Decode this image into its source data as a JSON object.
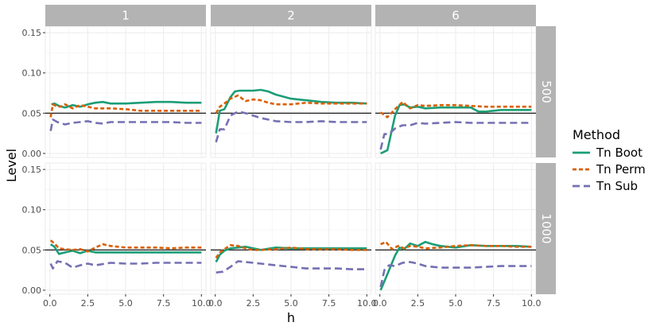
{
  "chart_data": {
    "type": "line",
    "xlabel": "h",
    "ylabel": "Level",
    "xlim": [
      -0.3,
      10.3
    ],
    "ylim": [
      -0.005,
      0.158
    ],
    "x_ticks": [
      0.0,
      2.5,
      5.0,
      7.5,
      10.0
    ],
    "x_tick_labels": [
      "0.0",
      "2.5",
      "5.0",
      "7.5",
      "10.0"
    ],
    "y_ticks": [
      0.0,
      0.05,
      0.1,
      0.15
    ],
    "y_tick_labels": [
      "0.00",
      "0.05",
      "0.10",
      "0.15"
    ],
    "reference_line": 0.05,
    "grid": true,
    "legend": {
      "title": "Method",
      "placement": "right",
      "entries": [
        {
          "name": "Tn Boot",
          "color": "#1b9e77",
          "dash": "solid"
        },
        {
          "name": "Tn Perm",
          "color": "#d95f02",
          "dash": "dotted"
        },
        {
          "name": "Tn Sub",
          "color": "#7570b3",
          "dash": "dashed"
        }
      ]
    },
    "col_facets": [
      "1",
      "2",
      "6"
    ],
    "row_facets": [
      "500",
      "1000"
    ],
    "panels": [
      {
        "col": "1",
        "row": "500",
        "series": [
          {
            "name": "Tn Boot",
            "x": [
              0.1,
              0.3,
              0.6,
              1,
              1.5,
              2,
              2.5,
              3,
              3.5,
              4,
              5,
              6,
              7,
              8,
              9,
              10
            ],
            "y": [
              0.061,
              0.062,
              0.059,
              0.057,
              0.06,
              0.058,
              0.061,
              0.063,
              0.064,
              0.062,
              0.062,
              0.063,
              0.064,
              0.064,
              0.063,
              0.063
            ]
          },
          {
            "name": "Tn Perm",
            "x": [
              0.05,
              0.2,
              0.4,
              0.7,
              1,
              1.5,
              2,
              2.5,
              3,
              4,
              5,
              6,
              7,
              8,
              9,
              10
            ],
            "y": [
              0.045,
              0.061,
              0.059,
              0.058,
              0.061,
              0.056,
              0.06,
              0.058,
              0.056,
              0.056,
              0.055,
              0.053,
              0.053,
              0.053,
              0.053,
              0.053
            ]
          },
          {
            "name": "Tn Sub",
            "x": [
              0.05,
              0.2,
              0.5,
              1,
              1.5,
              2,
              2.5,
              3,
              3.5,
              4,
              5,
              6,
              7,
              8,
              9,
              10
            ],
            "y": [
              0.028,
              0.042,
              0.039,
              0.036,
              0.038,
              0.039,
              0.04,
              0.038,
              0.037,
              0.039,
              0.039,
              0.039,
              0.039,
              0.039,
              0.038,
              0.038
            ]
          }
        ]
      },
      {
        "col": "2",
        "row": "500",
        "series": [
          {
            "name": "Tn Boot",
            "x": [
              0.05,
              0.3,
              0.6,
              1,
              1.3,
              1.6,
              2,
              2.5,
              3,
              3.5,
              4,
              5,
              6,
              7,
              8,
              9,
              10
            ],
            "y": [
              0.025,
              0.053,
              0.055,
              0.07,
              0.077,
              0.078,
              0.078,
              0.078,
              0.079,
              0.077,
              0.073,
              0.068,
              0.066,
              0.064,
              0.063,
              0.063,
              0.062
            ]
          },
          {
            "name": "Tn Perm",
            "x": [
              0.05,
              0.3,
              0.6,
              1,
              1.5,
              2,
              2.5,
              3,
              3.5,
              4,
              5,
              6,
              7,
              8,
              9,
              10
            ],
            "y": [
              0.05,
              0.058,
              0.062,
              0.068,
              0.072,
              0.065,
              0.067,
              0.066,
              0.063,
              0.061,
              0.061,
              0.063,
              0.062,
              0.062,
              0.062,
              0.062
            ]
          },
          {
            "name": "Tn Sub",
            "x": [
              0.05,
              0.3,
              0.6,
              1,
              1.5,
              2,
              2.5,
              3,
              4,
              5,
              6,
              7,
              8,
              9,
              10
            ],
            "y": [
              0.014,
              0.03,
              0.03,
              0.047,
              0.052,
              0.05,
              0.047,
              0.044,
              0.04,
              0.039,
              0.039,
              0.04,
              0.039,
              0.039,
              0.039
            ]
          }
        ]
      },
      {
        "col": "6",
        "row": "500",
        "series": [
          {
            "name": "Tn Boot",
            "x": [
              0.05,
              0.5,
              1,
              1.3,
              1.6,
              2,
              2.5,
              3,
              4,
              5,
              6,
              6.5,
              7,
              8,
              9,
              10
            ],
            "y": [
              0.0,
              0.004,
              0.047,
              0.06,
              0.061,
              0.057,
              0.058,
              0.056,
              0.057,
              0.057,
              0.057,
              0.052,
              0.052,
              0.054,
              0.054,
              0.054
            ]
          },
          {
            "name": "Tn Perm",
            "x": [
              0.05,
              0.5,
              1,
              1.5,
              2,
              2.5,
              3,
              4,
              5,
              6,
              7,
              8,
              9,
              10
            ],
            "y": [
              0.051,
              0.045,
              0.055,
              0.064,
              0.056,
              0.06,
              0.059,
              0.06,
              0.06,
              0.059,
              0.058,
              0.058,
              0.058,
              0.058
            ]
          },
          {
            "name": "Tn Sub",
            "x": [
              0.05,
              0.3,
              0.6,
              1,
              1.5,
              2,
              2.5,
              3,
              4,
              5,
              6,
              7,
              8,
              9,
              10
            ],
            "y": [
              0.005,
              0.024,
              0.024,
              0.031,
              0.035,
              0.035,
              0.038,
              0.037,
              0.038,
              0.039,
              0.038,
              0.038,
              0.038,
              0.038,
              0.038
            ]
          }
        ]
      },
      {
        "col": "1",
        "row": "1000",
        "series": [
          {
            "name": "Tn Boot",
            "x": [
              0.05,
              0.3,
              0.6,
              1,
              1.5,
              2,
              2.5,
              3,
              4,
              5,
              6,
              7,
              8,
              9,
              10
            ],
            "y": [
              0.057,
              0.054,
              0.045,
              0.047,
              0.049,
              0.046,
              0.049,
              0.047,
              0.047,
              0.047,
              0.047,
              0.047,
              0.047,
              0.047,
              0.047
            ]
          },
          {
            "name": "Tn Perm",
            "x": [
              0.05,
              0.3,
              0.6,
              1,
              1.5,
              2,
              2.5,
              3,
              3.5,
              4,
              5,
              6,
              7,
              8,
              9,
              10
            ],
            "y": [
              0.062,
              0.058,
              0.052,
              0.051,
              0.05,
              0.051,
              0.048,
              0.053,
              0.057,
              0.055,
              0.053,
              0.053,
              0.053,
              0.052,
              0.053,
              0.053
            ]
          },
          {
            "name": "Tn Sub",
            "x": [
              0.05,
              0.2,
              0.5,
              1,
              1.5,
              2,
              2.5,
              3,
              4,
              5,
              6,
              7,
              8,
              9,
              10
            ],
            "y": [
              0.033,
              0.027,
              0.036,
              0.034,
              0.028,
              0.031,
              0.033,
              0.031,
              0.034,
              0.033,
              0.033,
              0.034,
              0.034,
              0.034,
              0.034
            ]
          }
        ]
      },
      {
        "col": "2",
        "row": "1000",
        "series": [
          {
            "name": "Tn Boot",
            "x": [
              0.05,
              0.3,
              0.6,
              1,
              1.5,
              2,
              2.5,
              3,
              4,
              5,
              6,
              7,
              8,
              9,
              10
            ],
            "y": [
              0.035,
              0.044,
              0.049,
              0.052,
              0.053,
              0.054,
              0.052,
              0.05,
              0.053,
              0.052,
              0.052,
              0.052,
              0.052,
              0.052,
              0.052
            ]
          },
          {
            "name": "Tn Perm",
            "x": [
              0.05,
              0.3,
              0.6,
              1,
              1.5,
              2,
              2.5,
              3,
              4,
              5,
              6,
              7,
              8,
              9,
              10
            ],
            "y": [
              0.04,
              0.047,
              0.051,
              0.056,
              0.055,
              0.052,
              0.05,
              0.05,
              0.051,
              0.053,
              0.051,
              0.051,
              0.051,
              0.05,
              0.05
            ]
          },
          {
            "name": "Tn Sub",
            "x": [
              0.05,
              0.5,
              1,
              1.5,
              2,
              2.5,
              3,
              4,
              5,
              6,
              7,
              8,
              9,
              10
            ],
            "y": [
              0.022,
              0.023,
              0.029,
              0.036,
              0.035,
              0.034,
              0.033,
              0.031,
              0.029,
              0.027,
              0.027,
              0.027,
              0.026,
              0.026
            ]
          }
        ]
      },
      {
        "col": "6",
        "row": "1000",
        "series": [
          {
            "name": "Tn Boot",
            "x": [
              0.05,
              0.5,
              1,
              1.3,
              1.6,
              2,
              2.5,
              3,
              3.5,
              4,
              5,
              6,
              7,
              8,
              9,
              10
            ],
            "y": [
              0.0,
              0.02,
              0.043,
              0.053,
              0.051,
              0.058,
              0.055,
              0.06,
              0.057,
              0.055,
              0.053,
              0.056,
              0.055,
              0.055,
              0.055,
              0.054
            ]
          },
          {
            "name": "Tn Perm",
            "x": [
              0.05,
              0.4,
              0.8,
              1.2,
              1.6,
              2,
              2.5,
              3,
              4,
              5,
              6,
              7,
              8,
              9,
              10
            ],
            "y": [
              0.057,
              0.06,
              0.051,
              0.055,
              0.052,
              0.055,
              0.054,
              0.052,
              0.053,
              0.055,
              0.056,
              0.055,
              0.055,
              0.054,
              0.054
            ]
          },
          {
            "name": "Tn Sub",
            "x": [
              0.05,
              0.3,
              0.6,
              1,
              1.5,
              2,
              2.5,
              3,
              4,
              5,
              6,
              7,
              8,
              9,
              10
            ],
            "y": [
              0.004,
              0.025,
              0.031,
              0.03,
              0.034,
              0.035,
              0.033,
              0.03,
              0.028,
              0.028,
              0.028,
              0.029,
              0.03,
              0.03,
              0.03
            ]
          }
        ]
      }
    ]
  }
}
